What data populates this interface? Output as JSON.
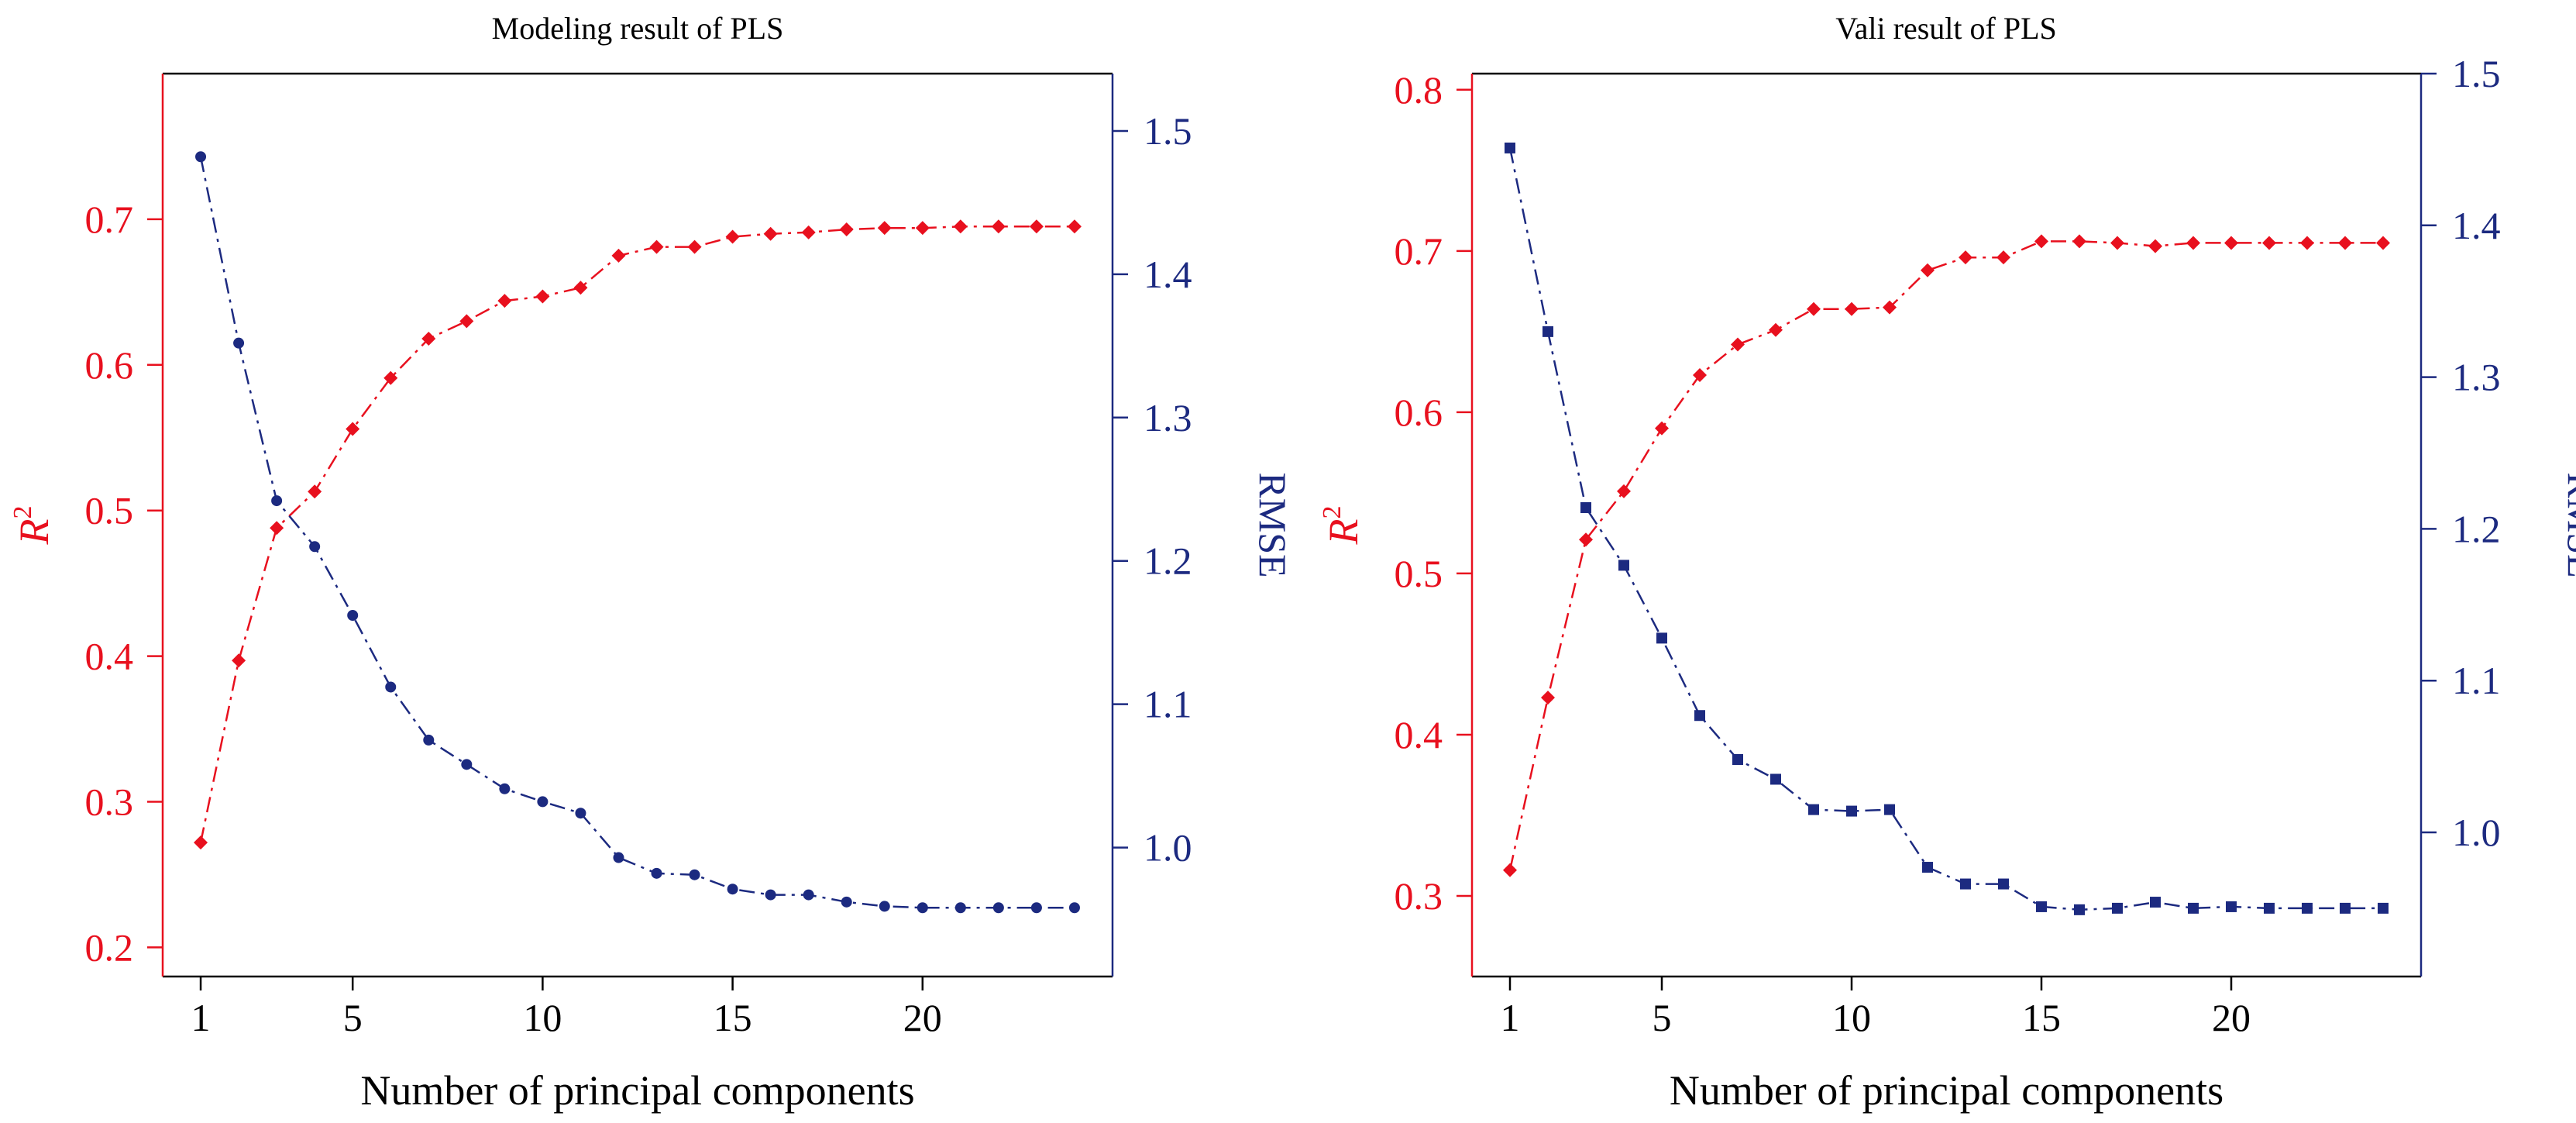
{
  "colors": {
    "r2": "#e8101e",
    "rmse": "#1c2a80",
    "frame": "#000000"
  },
  "shared_xlabel": "Number of principal components",
  "chart_data": [
    {
      "type": "line",
      "title": "Modeling result of PLS",
      "xlabel": "Number of principal components",
      "ylabel_left": "R²",
      "ylabel_left_base": "R",
      "ylabel_left_sup": "2",
      "ylabel_right": "RMSE",
      "xlim": [
        0,
        25
      ],
      "x_ticks": [
        1,
        5,
        10,
        15,
        20
      ],
      "x_tick_labels": [
        "1",
        "5",
        "10",
        "15",
        "20"
      ],
      "y_left_lim": [
        0.18,
        0.8
      ],
      "y_left_ticks": [
        0.2,
        0.3,
        0.4,
        0.5,
        0.6,
        0.7
      ],
      "y_left_tick_labels": [
        "0.2",
        "0.3",
        "0.4",
        "0.5",
        "0.6",
        "0.7"
      ],
      "y_right_lim": [
        0.91,
        1.54
      ],
      "y_right_ticks": [
        1.0,
        1.1,
        1.2,
        1.3,
        1.4,
        1.5
      ],
      "y_right_tick_labels": [
        "1.0",
        "1.1",
        "1.2",
        "1.3",
        "1.4",
        "1.5"
      ],
      "grid": false,
      "series": [
        {
          "axis": "left",
          "marker": "diamond",
          "x": [
            1,
            2,
            3,
            4,
            5,
            6,
            7,
            8,
            9,
            10,
            11,
            12,
            13,
            14,
            15,
            16,
            17,
            18,
            19,
            20,
            21,
            22,
            23,
            24
          ],
          "values": [
            0.272,
            0.397,
            0.488,
            0.513,
            0.556,
            0.591,
            0.618,
            0.63,
            0.644,
            0.647,
            0.653,
            0.675,
            0.681,
            0.681,
            0.688,
            0.69,
            0.691,
            0.693,
            0.694,
            0.694,
            0.695,
            0.695,
            0.695,
            0.695
          ]
        },
        {
          "axis": "right",
          "marker": "circle",
          "x": [
            1,
            2,
            3,
            4,
            5,
            6,
            7,
            8,
            9,
            10,
            11,
            12,
            13,
            14,
            15,
            16,
            17,
            18,
            19,
            20,
            21,
            22,
            23,
            24
          ],
          "values": [
            1.482,
            1.352,
            1.242,
            1.21,
            1.162,
            1.112,
            1.075,
            1.058,
            1.041,
            1.032,
            1.024,
            0.993,
            0.982,
            0.981,
            0.971,
            0.967,
            0.967,
            0.962,
            0.959,
            0.958,
            0.958,
            0.958,
            0.958,
            0.958
          ]
        }
      ]
    },
    {
      "type": "line",
      "title": "Vali result of PLS",
      "xlabel": "Number of principal components",
      "ylabel_left": "R²",
      "ylabel_left_base": "R",
      "ylabel_left_sup": "2",
      "ylabel_right": "RMSE",
      "xlim": [
        0,
        25
      ],
      "x_ticks": [
        1,
        5,
        10,
        15,
        20
      ],
      "x_tick_labels": [
        "1",
        "5",
        "10",
        "15",
        "20"
      ],
      "y_left_lim": [
        0.25,
        0.81
      ],
      "y_left_ticks": [
        0.3,
        0.4,
        0.5,
        0.6,
        0.7,
        0.8
      ],
      "y_left_tick_labels": [
        "0.3",
        "0.4",
        "0.5",
        "0.6",
        "0.7",
        "0.8"
      ],
      "y_right_lim": [
        0.905,
        1.5
      ],
      "y_right_ticks": [
        1.0,
        1.1,
        1.2,
        1.3,
        1.4,
        1.5
      ],
      "y_right_tick_labels": [
        "1.0",
        "1.1",
        "1.2",
        "1.3",
        "1.4",
        "1.5"
      ],
      "grid": false,
      "series": [
        {
          "axis": "left",
          "marker": "diamond",
          "x": [
            1,
            2,
            3,
            4,
            5,
            6,
            7,
            8,
            9,
            10,
            11,
            12,
            13,
            14,
            15,
            16,
            17,
            18,
            19,
            20,
            21,
            22,
            23,
            24
          ],
          "values": [
            0.316,
            0.423,
            0.521,
            0.551,
            0.59,
            0.623,
            0.642,
            0.651,
            0.664,
            0.664,
            0.665,
            0.688,
            0.696,
            0.696,
            0.706,
            0.706,
            0.705,
            0.703,
            0.705,
            0.705,
            0.705,
            0.705,
            0.705,
            0.705
          ]
        },
        {
          "axis": "right",
          "marker": "square",
          "x": [
            1,
            2,
            3,
            4,
            5,
            6,
            7,
            8,
            9,
            10,
            11,
            12,
            13,
            14,
            15,
            16,
            17,
            18,
            19,
            20,
            21,
            22,
            23,
            24
          ],
          "values": [
            1.451,
            1.33,
            1.214,
            1.176,
            1.128,
            1.077,
            1.048,
            1.035,
            1.015,
            1.014,
            1.015,
            0.977,
            0.966,
            0.966,
            0.951,
            0.949,
            0.95,
            0.954,
            0.95,
            0.951,
            0.95,
            0.95,
            0.95,
            0.95
          ]
        }
      ]
    }
  ]
}
